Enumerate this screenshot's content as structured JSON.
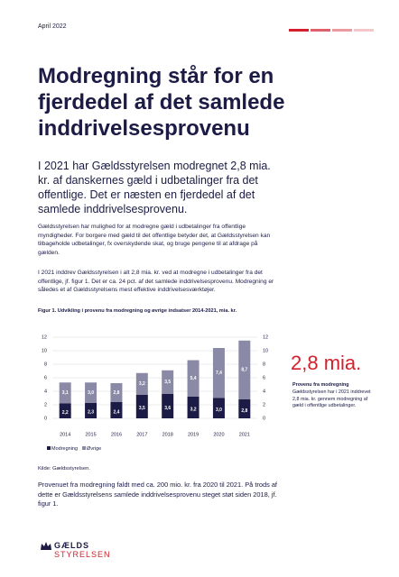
{
  "header": {
    "date": "April 2022"
  },
  "title": "Modregning står for en fjerdedel af det samlede inddrivelsesprovenu",
  "lead": "I 2021 har Gældsstyrelsen modregnet 2,8 mia. kr. af danskernes gæld i udbetalinger fra det offentlige. Det er næsten en fjerdedel af det samlede inddrivelsesprovenu.",
  "body": [
    "Gældsstyrelsen har mulighed for at modregne gæld i udbetalinger fra offentlige myndigheder. For borgere med gæld til det offentlige betyder det, at Gældsstyrelsen kan tilbageholde udbetalinger, fx overskydende skat, og bruge pengene til at afdrage på gælden.",
    "I 2021 inddrev Gældsstyrelsen i alt 2,8 mia. kr. ved at modregne i udbetalinger fra det offentlige, jf. figur 1. Det er ca. 24 pct. af det samlede inddrivelsesprovenu. Modregning er således et af Gældsstyrelsens mest effektive inddrivelsesværktøjer."
  ],
  "sidebar": {
    "figure": "2,8 mia.",
    "heading": "Provenu fra modregning",
    "text": "Gældsstyrelsen har i 2021 inddrevet 2,8 mia. kr. gennem modregning af gæld i offentlige udbetalinger."
  },
  "chart_data": {
    "type": "stacked-bar",
    "title": "Figur 1. Udvikling i provenu fra modregning og øvrige indsatser 2014-2021, mia. kr.",
    "categories": [
      "2014",
      "2015",
      "2016",
      "2017",
      "2018",
      "2019",
      "2020",
      "2021"
    ],
    "series": [
      {
        "name": "Modregning",
        "color": "#1b1b45",
        "values": [
          2.2,
          2.3,
          2.4,
          3.5,
          3.6,
          3.2,
          3.0,
          2.8
        ],
        "value_labels": [
          "2,2",
          "2,3",
          "2,4",
          "3,5",
          "3,6",
          "3,2",
          "3,0",
          "2,8"
        ]
      },
      {
        "name": "Øvrige",
        "color": "#8b8aa6",
        "values": [
          3.1,
          3.0,
          2.8,
          3.2,
          3.5,
          5.4,
          7.4,
          8.7
        ],
        "value_labels": [
          "3,1",
          "3,0",
          "2,8",
          "3,2",
          "3,5",
          "5,4",
          "7,4",
          "8,7"
        ]
      }
    ],
    "ylim": [
      0,
      12
    ],
    "yticks": [
      0,
      2,
      4,
      6,
      8,
      10,
      12
    ],
    "y2lim": [
      0,
      12
    ],
    "y2ticks": [
      0,
      2,
      4,
      6,
      8,
      10,
      12
    ],
    "grid": true,
    "legend": "bottom-left",
    "source": "Kilde: Gældsstyrelsen."
  },
  "closing": "Provenuet fra modregning faldt med ca. 200 mio. kr. fra 2020 til 2021. På trods af dette er Gældsstyrelsens samlede inddrivelsesprovenu steget støt siden 2018, jf. figur 1.",
  "logo": {
    "line1": "GÆLDS",
    "line2": "STYRELSEN"
  }
}
